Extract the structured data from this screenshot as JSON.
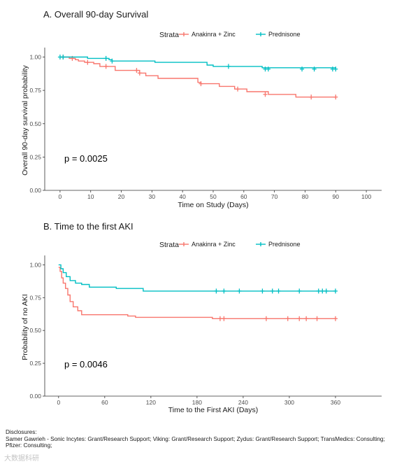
{
  "chart_data": [
    {
      "type": "line",
      "subtype": "kaplan-meier",
      "title": "A. Overall 90-day Survival",
      "xlabel": "Time on Study (Days)",
      "ylabel": "Overall 90-day survival probability",
      "xlim": [
        -5,
        105
      ],
      "ylim": [
        0,
        1.05
      ],
      "x_ticks": [
        0,
        10,
        20,
        30,
        40,
        50,
        60,
        70,
        80,
        90,
        100
      ],
      "y_ticks": [
        0.0,
        0.25,
        0.5,
        0.75,
        1.0
      ],
      "y_tick_labels": [
        "0.00",
        "0.25",
        "0.50",
        "0.75",
        "1.00"
      ],
      "grid": false,
      "legend": {
        "title": "Strata",
        "position": "top"
      },
      "annotation": "p = 0.0025",
      "series": [
        {
          "name": "Anakinra + Zinc",
          "color": "#F8766D",
          "steps": [
            [
              0,
              1.0
            ],
            [
              3,
              0.99
            ],
            [
              5,
              0.98
            ],
            [
              6,
              0.97
            ],
            [
              8,
              0.96
            ],
            [
              11,
              0.95
            ],
            [
              13,
              0.93
            ],
            [
              18,
              0.9
            ],
            [
              26,
              0.88
            ],
            [
              28,
              0.86
            ],
            [
              32,
              0.84
            ],
            [
              45,
              0.81
            ],
            [
              46,
              0.8
            ],
            [
              52,
              0.78
            ],
            [
              57,
              0.76
            ],
            [
              61,
              0.74
            ],
            [
              68,
              0.72
            ],
            [
              77,
              0.7
            ],
            [
              90,
              0.7
            ]
          ],
          "censored": [
            [
              1,
              1.0
            ],
            [
              4,
              0.99
            ],
            [
              9,
              0.96
            ],
            [
              15,
              0.93
            ],
            [
              25,
              0.9
            ],
            [
              26,
              0.88
            ],
            [
              46,
              0.8
            ],
            [
              58,
              0.76
            ],
            [
              67,
              0.72
            ],
            [
              82,
              0.7
            ],
            [
              90,
              0.7
            ]
          ]
        },
        {
          "name": "Prednisone",
          "color": "#00BFC4",
          "steps": [
            [
              0,
              1.0
            ],
            [
              9,
              0.99
            ],
            [
              16,
              0.98
            ],
            [
              17,
              0.97
            ],
            [
              31,
              0.96
            ],
            [
              48,
              0.94
            ],
            [
              50,
              0.93
            ],
            [
              66,
              0.92
            ],
            [
              90,
              0.91
            ]
          ],
          "censored": [
            [
              0,
              1.0
            ],
            [
              1,
              1.0
            ],
            [
              15,
              0.99
            ],
            [
              17,
              0.97
            ],
            [
              55,
              0.93
            ],
            [
              67,
              0.91
            ],
            [
              68,
              0.91
            ],
            [
              79,
              0.91
            ],
            [
              83,
              0.91
            ],
            [
              89,
              0.91
            ],
            [
              90,
              0.91
            ]
          ]
        }
      ]
    },
    {
      "type": "line",
      "subtype": "kaplan-meier",
      "title": "B. Time to the first AKI",
      "xlabel": "Time to the First AKI (Days)",
      "ylabel": "Probability of no AKI",
      "xlim": [
        -18,
        420
      ],
      "ylim": [
        0,
        1.05
      ],
      "x_ticks": [
        0,
        60,
        120,
        180,
        240,
        300,
        360
      ],
      "y_ticks": [
        0.0,
        0.25,
        0.5,
        0.75,
        1.0
      ],
      "y_tick_labels": [
        "0.00",
        "0.25",
        "0.50",
        "0.75",
        "1.00"
      ],
      "grid": false,
      "legend": {
        "title": "Strata",
        "position": "top"
      },
      "annotation": "p = 0.0046",
      "series": [
        {
          "name": "Anakinra + Zinc",
          "color": "#F8766D",
          "steps": [
            [
              0,
              0.98
            ],
            [
              2,
              0.95
            ],
            [
              4,
              0.9
            ],
            [
              6,
              0.86
            ],
            [
              9,
              0.82
            ],
            [
              12,
              0.77
            ],
            [
              15,
              0.72
            ],
            [
              19,
              0.68
            ],
            [
              25,
              0.65
            ],
            [
              30,
              0.62
            ],
            [
              90,
              0.61
            ],
            [
              100,
              0.6
            ],
            [
              200,
              0.59
            ],
            [
              360,
              0.59
            ]
          ],
          "censored": [
            [
              210,
              0.59
            ],
            [
              215,
              0.59
            ],
            [
              270,
              0.59
            ],
            [
              298,
              0.59
            ],
            [
              313,
              0.59
            ],
            [
              322,
              0.59
            ],
            [
              336,
              0.59
            ],
            [
              360,
              0.59
            ]
          ]
        },
        {
          "name": "Prednisone",
          "color": "#00BFC4",
          "steps": [
            [
              0,
              1.0
            ],
            [
              3,
              0.97
            ],
            [
              6,
              0.94
            ],
            [
              10,
              0.91
            ],
            [
              15,
              0.88
            ],
            [
              22,
              0.86
            ],
            [
              30,
              0.85
            ],
            [
              40,
              0.83
            ],
            [
              75,
              0.82
            ],
            [
              110,
              0.8
            ],
            [
              360,
              0.8
            ]
          ],
          "censored": [
            [
              205,
              0.8
            ],
            [
              215,
              0.8
            ],
            [
              235,
              0.8
            ],
            [
              265,
              0.8
            ],
            [
              278,
              0.8
            ],
            [
              286,
              0.8
            ],
            [
              313,
              0.8
            ],
            [
              338,
              0.8
            ],
            [
              343,
              0.8
            ],
            [
              348,
              0.8
            ],
            [
              360,
              0.8
            ]
          ]
        }
      ]
    }
  ],
  "disclosures": {
    "heading": "Disclosures:",
    "lines": [
      "Samer Gawrieh - Sonic Incytes: Grant/Research Support; Viking: Grant/Research Support; Zydus: Grant/Research Support; TransMedics: Consulting;",
      "Pfizer: Consulting;"
    ]
  },
  "watermark": "大数据科研"
}
